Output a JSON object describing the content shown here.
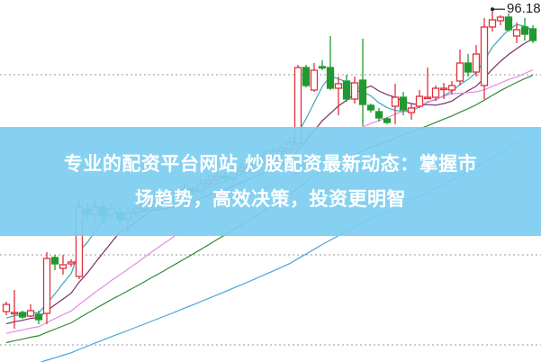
{
  "banner": {
    "line1": "专业的配资平台网站 炒股配资最新动态：掌握市",
    "line2": "场趋势，高效决策，投资更明智"
  },
  "chart_data": {
    "type": "candlestick",
    "high_label": "96.18",
    "grid": "horizontal-dotted",
    "colors": {
      "up": "#e0303a",
      "down": "#1f9a30",
      "ma5": "#3aa7b5",
      "ma10": "#7a2e6a",
      "ma20": "#e58be0",
      "ma30": "#2e8b3a",
      "ma60": "#4aa3d8",
      "grid": "#999999"
    },
    "moving_averages": [
      5,
      10,
      20,
      30,
      60
    ],
    "candles": [
      [
        62.6,
        63.4,
        63.7,
        62.2
      ],
      [
        62.4,
        62.5,
        65.0,
        60.7
      ],
      [
        62.5,
        62.0,
        62.7,
        61.8
      ],
      [
        62.1,
        62.7,
        63.4,
        62.0
      ],
      [
        62.3,
        61.7,
        62.7,
        61.2
      ],
      [
        62.4,
        68.5,
        69.2,
        61.2
      ],
      [
        68.6,
        67.9,
        68.9,
        67.2
      ],
      [
        67.4,
        67.8,
        68.9,
        66.7
      ],
      [
        67.9,
        68.1,
        68.4,
        67.6
      ],
      [
        66.5,
        74.2,
        75.2,
        66.2
      ],
      [
        74.0,
        73.4,
        74.7,
        72.7
      ],
      [
        73.4,
        74.2,
        75.0,
        72.8
      ],
      [
        74.2,
        73.2,
        74.6,
        72.4
      ],
      [
        73.4,
        74.0,
        74.6,
        72.8
      ],
      [
        73.6,
        72.8,
        74.2,
        72.2
      ],
      [
        72.8,
        73.6,
        74.2,
        71.4
      ],
      [
        73.6,
        74.0,
        74.6,
        73.0
      ],
      [
        74.0,
        74.4,
        75.0,
        73.6
      ],
      [
        74.4,
        74.8,
        75.4,
        74.0
      ],
      [
        74.8,
        74.6,
        75.2,
        74.0
      ],
      [
        74.6,
        75.4,
        75.9,
        74.2
      ],
      [
        75.4,
        75.8,
        76.3,
        75.0
      ],
      [
        75.8,
        76.2,
        76.8,
        75.4
      ],
      [
        76.2,
        76.0,
        76.6,
        75.6
      ],
      [
        76.0,
        76.8,
        77.3,
        75.6
      ],
      [
        76.8,
        77.2,
        77.8,
        76.4
      ],
      [
        77.2,
        77.6,
        78.1,
        76.8
      ],
      [
        77.6,
        77.4,
        78.0,
        77.0
      ],
      [
        77.4,
        78.2,
        78.7,
        77.0
      ],
      [
        78.2,
        78.6,
        79.1,
        77.8
      ],
      [
        78.6,
        79.2,
        79.8,
        78.2
      ],
      [
        79.2,
        79.6,
        80.1,
        78.8
      ],
      [
        79.6,
        80.0,
        80.5,
        79.2
      ],
      [
        80.0,
        80.4,
        80.9,
        79.6
      ],
      [
        80.4,
        80.8,
        81.3,
        80.0
      ],
      [
        80.6,
        81.4,
        82.0,
        80.2
      ],
      [
        81.2,
        89.7,
        90.0,
        80.7
      ],
      [
        89.7,
        87.7,
        90.0,
        87.5
      ],
      [
        87.2,
        89.4,
        90.2,
        87.0
      ],
      [
        89.8,
        89.7,
        90.5,
        89.4
      ],
      [
        89.7,
        87.4,
        93.2,
        87.2
      ],
      [
        87.4,
        87.9,
        88.7,
        84.4
      ],
      [
        88.2,
        86.2,
        88.9,
        85.9
      ],
      [
        86.2,
        88.0,
        88.7,
        85.7
      ],
      [
        88.3,
        85.6,
        92.9,
        83.2
      ],
      [
        85.5,
        85.0,
        85.7,
        84.7
      ],
      [
        84.8,
        84.1,
        85.2,
        83.7
      ],
      [
        84.0,
        83.6,
        84.2,
        83.4
      ],
      [
        85.4,
        86.4,
        87.9,
        83.4
      ],
      [
        86.4,
        85.0,
        87.0,
        84.4
      ],
      [
        84.7,
        85.2,
        85.7,
        83.9
      ],
      [
        85.4,
        86.5,
        87.2,
        85.2
      ],
      [
        86.4,
        86.4,
        89.7,
        86.2
      ],
      [
        86.4,
        87.4,
        87.7,
        86.0
      ],
      [
        87.4,
        87.4,
        88.0,
        86.2
      ],
      [
        87.2,
        87.7,
        88.2,
        86.7
      ],
      [
        88.2,
        90.2,
        91.7,
        87.7
      ],
      [
        90.2,
        89.2,
        91.2,
        88.7
      ],
      [
        89.2,
        91.2,
        92.2,
        88.7
      ],
      [
        87.7,
        94.2,
        95.2,
        86.2
      ],
      [
        94.2,
        95.0,
        96.18,
        93.7
      ],
      [
        94.9,
        95.3,
        95.5,
        94.4
      ],
      [
        95.3,
        93.9,
        95.7,
        93.7
      ],
      [
        93.2,
        93.9,
        94.7,
        92.4
      ],
      [
        94.2,
        93.4,
        95.2,
        92.7
      ],
      [
        94.0,
        92.7,
        94.4,
        92.4
      ]
    ]
  }
}
